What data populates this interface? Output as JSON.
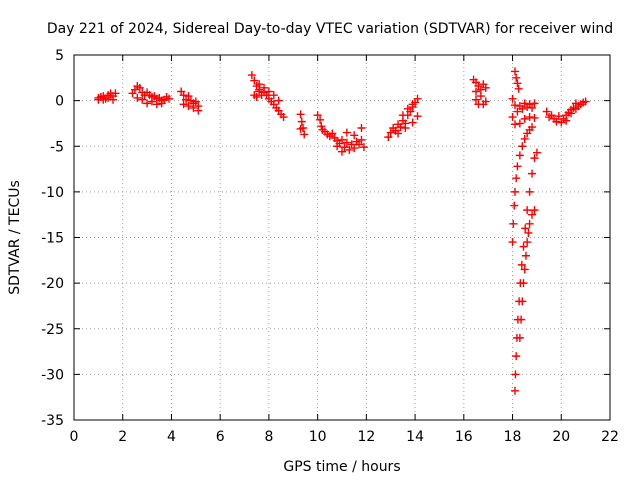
{
  "chart_data": {
    "type": "scatter",
    "title": "Day 221 of 2024, Sidereal Day-to-day VTEC variation (SDTVAR) for receiver wind",
    "xlabel": "GPS time / hours",
    "ylabel": "SDTVAR / TECUs",
    "xlim": [
      0,
      22
    ],
    "ylim": [
      -35,
      5
    ],
    "xticks": [
      0,
      2,
      4,
      6,
      8,
      10,
      12,
      14,
      16,
      18,
      20,
      22
    ],
    "yticks": [
      5,
      0,
      -5,
      -10,
      -15,
      -20,
      -25,
      -30,
      -35
    ],
    "grid": true,
    "marker": "+",
    "color": "#ff0000",
    "series": [
      {
        "name": "arc1",
        "points": [
          [
            1.0,
            0.1
          ],
          [
            1.1,
            0.4
          ],
          [
            1.2,
            0.5
          ],
          [
            1.3,
            0.2
          ],
          [
            1.4,
            0.6
          ],
          [
            1.5,
            0.8
          ],
          [
            1.6,
            0.5
          ],
          [
            1.7,
            0.8
          ],
          [
            1.0,
            0.3
          ],
          [
            1.2,
            0.1
          ],
          [
            1.4,
            0.3
          ],
          [
            1.6,
            0.1
          ]
        ]
      },
      {
        "name": "arc2",
        "points": [
          [
            2.4,
            0.8
          ],
          [
            2.5,
            1.2
          ],
          [
            2.6,
            1.6
          ],
          [
            2.7,
            1.4
          ],
          [
            2.8,
            0.9
          ],
          [
            2.9,
            0.6
          ],
          [
            3.0,
            0.9
          ],
          [
            3.1,
            0.6
          ],
          [
            3.2,
            0.4
          ],
          [
            3.3,
            0.5
          ],
          [
            3.4,
            0.2
          ],
          [
            3.5,
            0.3
          ],
          [
            3.6,
            0.0
          ],
          [
            3.7,
            0.1
          ],
          [
            3.8,
            0.4
          ],
          [
            3.9,
            0.2
          ],
          [
            2.6,
            0.3
          ],
          [
            2.8,
            0.1
          ],
          [
            3.0,
            -0.3
          ],
          [
            3.2,
            -0.1
          ],
          [
            3.4,
            -0.4
          ],
          [
            3.6,
            -0.3
          ]
        ]
      },
      {
        "name": "arc3",
        "points": [
          [
            4.4,
            1.0
          ],
          [
            4.5,
            0.6
          ],
          [
            4.6,
            0.1
          ],
          [
            4.7,
            0.5
          ],
          [
            4.8,
            0.0
          ],
          [
            4.9,
            -0.3
          ],
          [
            5.0,
            -0.1
          ],
          [
            5.1,
            -0.6
          ],
          [
            4.5,
            -0.4
          ],
          [
            4.7,
            -0.6
          ],
          [
            4.9,
            -0.8
          ],
          [
            5.1,
            -1.1
          ]
        ]
      },
      {
        "name": "arc4",
        "points": [
          [
            7.3,
            2.8
          ],
          [
            7.4,
            2.2
          ],
          [
            7.5,
            1.6
          ],
          [
            7.6,
            1.2
          ],
          [
            7.4,
            0.6
          ],
          [
            7.5,
            0.4
          ],
          [
            7.6,
            1.0
          ],
          [
            7.7,
            0.6
          ],
          [
            7.8,
            0.9
          ],
          [
            7.9,
            0.6
          ],
          [
            8.0,
            0.2
          ],
          [
            8.1,
            -0.1
          ],
          [
            8.2,
            -0.4
          ],
          [
            8.3,
            -0.8
          ],
          [
            8.4,
            -1.1
          ],
          [
            8.5,
            -1.5
          ],
          [
            8.6,
            -1.8
          ],
          [
            7.6,
            1.8
          ],
          [
            7.8,
            1.4
          ],
          [
            8.0,
            1.0
          ],
          [
            8.2,
            0.6
          ],
          [
            8.4,
            0.0
          ]
        ]
      },
      {
        "name": "arc5",
        "points": [
          [
            9.3,
            -1.5
          ],
          [
            9.35,
            -2.3
          ],
          [
            9.4,
            -3.0
          ],
          [
            9.45,
            -3.7
          ],
          [
            9.3,
            -3.1
          ]
        ]
      },
      {
        "name": "arc6",
        "points": [
          [
            10.0,
            -1.6
          ],
          [
            10.1,
            -2.1
          ],
          [
            10.15,
            -2.8
          ],
          [
            10.2,
            -3.2
          ],
          [
            10.3,
            -3.4
          ],
          [
            10.4,
            -3.7
          ],
          [
            10.5,
            -3.9
          ],
          [
            10.6,
            -3.6
          ],
          [
            10.7,
            -4.1
          ],
          [
            10.8,
            -4.4
          ],
          [
            10.9,
            -4.7
          ],
          [
            11.0,
            -4.3
          ],
          [
            11.1,
            -5.1
          ],
          [
            11.2,
            -4.6
          ],
          [
            11.3,
            -5.4
          ],
          [
            11.4,
            -4.8
          ],
          [
            11.5,
            -5.2
          ],
          [
            11.6,
            -4.5
          ],
          [
            11.7,
            -4.8
          ],
          [
            11.8,
            -4.3
          ],
          [
            11.9,
            -5.1
          ],
          [
            11.2,
            -3.5
          ],
          [
            11.5,
            -3.8
          ],
          [
            11.8,
            -3.0
          ],
          [
            10.8,
            -5.0
          ],
          [
            11.0,
            -5.6
          ]
        ]
      },
      {
        "name": "arc7",
        "points": [
          [
            12.9,
            -4.0
          ],
          [
            13.0,
            -3.5
          ],
          [
            13.1,
            -3.0
          ],
          [
            13.2,
            -3.3
          ],
          [
            13.3,
            -2.6
          ],
          [
            13.4,
            -2.9
          ],
          [
            13.5,
            -2.2
          ],
          [
            13.6,
            -2.5
          ],
          [
            13.7,
            -1.6
          ],
          [
            13.8,
            -1.2
          ],
          [
            13.9,
            -0.7
          ],
          [
            14.0,
            -0.2
          ],
          [
            14.1,
            0.2
          ],
          [
            13.5,
            -1.6
          ],
          [
            13.7,
            -0.9
          ],
          [
            13.9,
            -0.4
          ],
          [
            13.3,
            -3.6
          ],
          [
            13.6,
            -3.0
          ],
          [
            13.9,
            -2.4
          ],
          [
            14.1,
            -1.7
          ]
        ]
      },
      {
        "name": "arc8",
        "points": [
          [
            16.4,
            2.3
          ],
          [
            16.5,
            2.0
          ],
          [
            16.6,
            1.6
          ],
          [
            16.7,
            1.2
          ],
          [
            16.8,
            1.8
          ],
          [
            16.9,
            1.4
          ],
          [
            16.5,
            0.1
          ],
          [
            16.6,
            -0.4
          ],
          [
            16.8,
            -0.4
          ],
          [
            16.9,
            -0.1
          ],
          [
            16.7,
            0.5
          ],
          [
            16.5,
            1.0
          ]
        ]
      },
      {
        "name": "arc9",
        "points": [
          [
            18.1,
            3.2
          ],
          [
            18.15,
            2.5
          ],
          [
            18.2,
            1.9
          ],
          [
            18.25,
            1.3
          ],
          [
            18.0,
            0.2
          ],
          [
            18.1,
            -0.5
          ],
          [
            18.2,
            -1.2
          ],
          [
            18.3,
            -0.6
          ],
          [
            18.4,
            -0.9
          ],
          [
            18.5,
            -0.3
          ],
          [
            18.6,
            -0.7
          ],
          [
            18.7,
            -0.4
          ],
          [
            18.8,
            -0.8
          ],
          [
            18.9,
            -0.3
          ],
          [
            18.0,
            -1.8
          ],
          [
            18.1,
            -2.6
          ],
          [
            18.3,
            -2.5
          ],
          [
            18.5,
            -2.0
          ],
          [
            18.7,
            -1.8
          ],
          [
            18.9,
            -1.9
          ]
        ]
      },
      {
        "name": "arc10",
        "points": [
          [
            18.0,
            -15.5
          ],
          [
            18.03,
            -13.5
          ],
          [
            18.07,
            -11.5
          ],
          [
            18.1,
            -10.0
          ],
          [
            18.15,
            -8.5
          ],
          [
            18.2,
            -7.2
          ],
          [
            18.3,
            -6.0
          ],
          [
            18.4,
            -5.0
          ],
          [
            18.5,
            -4.2
          ],
          [
            18.6,
            -3.6
          ],
          [
            18.7,
            -3.2
          ],
          [
            18.8,
            -2.9
          ]
        ]
      },
      {
        "name": "arc11",
        "points": [
          [
            18.1,
            -31.8
          ],
          [
            18.12,
            -30.0
          ],
          [
            18.15,
            -28.0
          ],
          [
            18.18,
            -26.0
          ],
          [
            18.22,
            -24.0
          ],
          [
            18.27,
            -22.0
          ],
          [
            18.32,
            -20.0
          ],
          [
            18.38,
            -18.0
          ],
          [
            18.45,
            -16.0
          ],
          [
            18.52,
            -14.0
          ],
          [
            18.6,
            -12.0
          ],
          [
            18.7,
            -10.0
          ],
          [
            18.8,
            -8.0
          ],
          [
            18.9,
            -6.3
          ],
          [
            19.0,
            -5.7
          ]
        ]
      },
      {
        "name": "arc12",
        "points": [
          [
            18.3,
            -26.0
          ],
          [
            18.35,
            -24.0
          ],
          [
            18.4,
            -22.0
          ],
          [
            18.45,
            -20.0
          ],
          [
            18.5,
            -18.5
          ],
          [
            18.55,
            -17.0
          ],
          [
            18.6,
            -15.5
          ],
          [
            18.65,
            -14.5
          ],
          [
            18.7,
            -13.5
          ],
          [
            18.8,
            -12.5
          ],
          [
            18.9,
            -12.0
          ]
        ]
      },
      {
        "name": "arc13",
        "points": [
          [
            19.4,
            -1.2
          ],
          [
            19.5,
            -1.8
          ],
          [
            19.6,
            -1.6
          ],
          [
            19.7,
            -2.0
          ],
          [
            19.8,
            -2.3
          ],
          [
            19.9,
            -1.7
          ],
          [
            20.0,
            -2.4
          ],
          [
            20.1,
            -2.0
          ],
          [
            20.2,
            -1.6
          ],
          [
            20.3,
            -1.3
          ],
          [
            20.4,
            -1.0
          ],
          [
            20.5,
            -0.8
          ],
          [
            20.6,
            -0.9
          ],
          [
            20.7,
            -0.6
          ],
          [
            20.8,
            -0.4
          ],
          [
            20.9,
            -0.2
          ],
          [
            21.0,
            -0.1
          ],
          [
            20.6,
            -0.3
          ],
          [
            20.4,
            -1.4
          ],
          [
            20.2,
            -2.2
          ]
        ]
      }
    ]
  }
}
